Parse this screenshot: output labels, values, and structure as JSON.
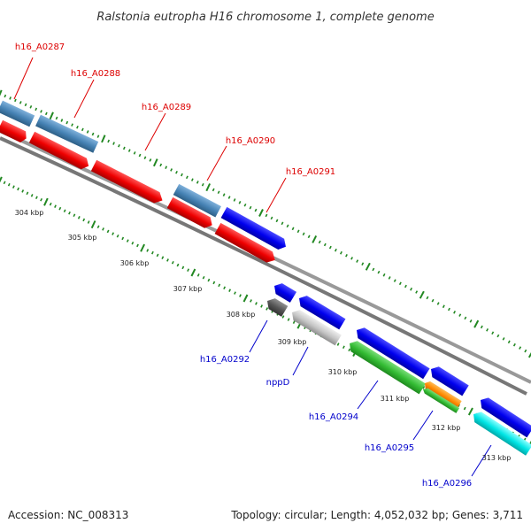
{
  "title": "Ralstonia eutropha H16 chromosome 1, complete genome",
  "footer": {
    "accession": "Accession: NC_008313",
    "summary": "Topology: circular; Length: 4,052,032 bp; Genes: 3,711"
  },
  "ticks": [
    "304 kbp",
    "305 kbp",
    "306 kbp",
    "307 kbp",
    "308 kbp",
    "309 kbp",
    "310 kbp",
    "311 kbp",
    "312 kbp",
    "313 kbp"
  ],
  "forward_labels": [
    "h16_A0287",
    "h16_A0288",
    "h16_A0289",
    "h16_A0290",
    "h16_A0291"
  ],
  "reverse_labels": [
    "h16_A0292",
    "nppD",
    "h16_A0294",
    "h16_A0295",
    "h16_A0296"
  ],
  "colors": {
    "label_forward": "#dd0000",
    "label_reverse": "#0000cc",
    "gene_steelblue": "#4682b4",
    "gene_red": "#ee0000",
    "gene_blue": "#0000ee",
    "gene_gray": "#bbbbbb",
    "gene_darkgray": "#555555",
    "gene_green": "#33bb33",
    "gene_orange": "#ff8800",
    "gene_cyan": "#00dddd",
    "backbone": "#888888",
    "tick": "#228822"
  }
}
